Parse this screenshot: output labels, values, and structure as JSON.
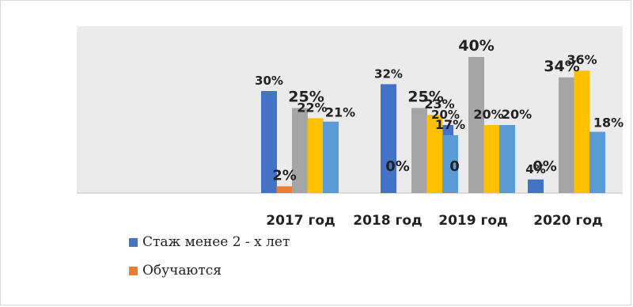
{
  "chart_data": {
    "type": "bar",
    "categories": [
      "2017 год",
      "2018 год",
      "2019 год",
      "2020 год"
    ],
    "series": [
      {
        "name": "Стаж менее 2 - х лет",
        "color": "#4472C4",
        "values": [
          30,
          32,
          20,
          4
        ],
        "labels": [
          "30%",
          "32%",
          "20%",
          "4%"
        ]
      },
      {
        "name": "Обучаются",
        "color": "#ED7D31",
        "values": [
          2,
          0,
          0,
          0
        ],
        "labels": [
          "2%",
          "0%",
          "0",
          "0%"
        ]
      },
      {
        "name": "",
        "color": "#A5A5A5",
        "values": [
          25,
          25,
          40,
          34
        ],
        "labels": [
          "25%",
          "25%",
          "40%",
          "34%"
        ]
      },
      {
        "name": "",
        "color": "#FFC000",
        "values": [
          22,
          23,
          20,
          36
        ],
        "labels": [
          "22%",
          "23%",
          "20%",
          "36%"
        ]
      },
      {
        "name": "",
        "color": "#5B9BD5",
        "values": [
          21,
          17,
          20,
          18
        ],
        "labels": [
          "21%",
          "17%",
          "20%",
          "18%"
        ]
      }
    ],
    "ylim": [
      0,
      45
    ],
    "grid": false,
    "legend_position": "bottom-left",
    "plot_background": "#EBEBEB"
  }
}
